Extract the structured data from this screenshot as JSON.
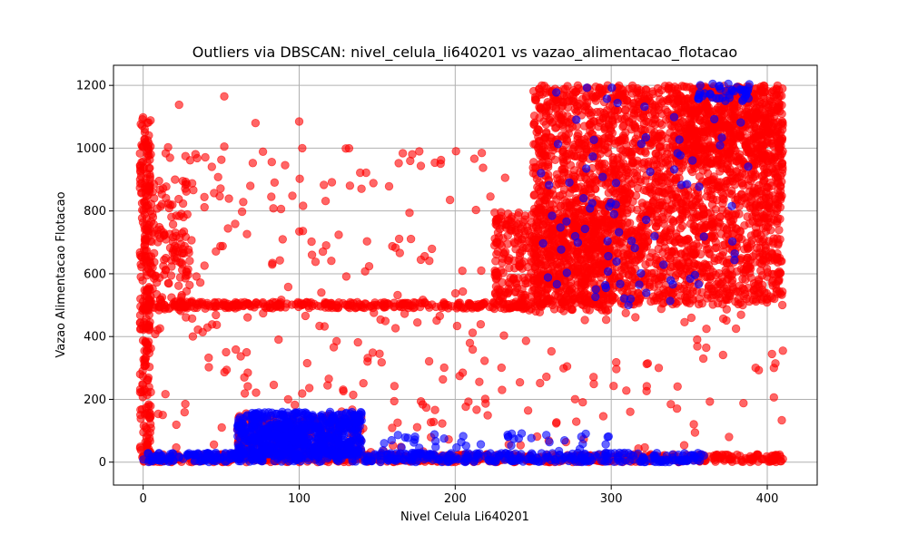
{
  "chart_data": {
    "type": "scatter",
    "title": "Outliers via DBSCAN: nivel_celula_li640201 vs vazao_alimentacao_flotacao",
    "xlabel": "Nivel Celula Li640201",
    "ylabel": "Vazao Alimentacao Flotacao",
    "xlim": [
      -19,
      432
    ],
    "ylim": [
      -73,
      1264
    ],
    "xticks": [
      0,
      100,
      200,
      300,
      400
    ],
    "yticks": [
      0,
      200,
      400,
      600,
      800,
      1000,
      1200
    ],
    "grid": true,
    "marker_alpha": 0.6,
    "series": [
      {
        "color": "#ff0000",
        "regions": [
          {
            "x": [
              250,
              410
            ],
            "y": [
              500,
              1200
            ],
            "n": 2600
          },
          {
            "x": [
              225,
              300
            ],
            "y": [
              480,
              800
            ],
            "n": 500
          },
          {
            "x": [
              340,
              410
            ],
            "y": [
              950,
              1200
            ],
            "n": 400
          },
          {
            "x": [
              0,
              250
            ],
            "y": [
              490,
              510
            ],
            "n": 300
          },
          {
            "x": [
              0,
              410
            ],
            "y": [
              0,
              25
            ],
            "n": 700
          },
          {
            "x": [
              -2,
              5
            ],
            "y": [
              0,
              1100
            ],
            "n": 250
          },
          {
            "x": [
              0,
              30
            ],
            "y": [
              480,
              900
            ],
            "n": 150
          },
          {
            "x": [
              60,
              140
            ],
            "y": [
              30,
              150
            ],
            "n": 220
          },
          {
            "x": [
              0,
              410
            ],
            "y": [
              30,
              1000
            ],
            "n": 400
          }
        ],
        "points": [
          {
            "x": 52,
            "y": 1165
          },
          {
            "x": 23,
            "y": 1138
          },
          {
            "x": 100,
            "y": 1085
          },
          {
            "x": 72,
            "y": 1080
          },
          {
            "x": 287,
            "y": 1080
          },
          {
            "x": 52,
            "y": 1005
          },
          {
            "x": 102,
            "y": 1000
          },
          {
            "x": 16,
            "y": 1003
          },
          {
            "x": 410,
            "y": 355
          },
          {
            "x": 410,
            "y": 10
          },
          {
            "x": 390,
            "y": 8
          },
          {
            "x": 0,
            "y": 1098
          },
          {
            "x": 177,
            "y": 990
          },
          {
            "x": 230,
            "y": 230
          },
          {
            "x": 380,
            "y": 425
          }
        ]
      },
      {
        "color": "#0000ff",
        "regions": [
          {
            "x": [
              60,
              140
            ],
            "y": [
              20,
              160
            ],
            "n": 650
          },
          {
            "x": [
              0,
              360
            ],
            "y": [
              0,
              30
            ],
            "n": 500
          },
          {
            "x": [
              150,
              300
            ],
            "y": [
              30,
              100
            ],
            "n": 40
          },
          {
            "x": [
              255,
              390
            ],
            "y": [
              500,
              1200
            ],
            "n": 80
          },
          {
            "x": [
              355,
              390
            ],
            "y": [
              1150,
              1205
            ],
            "n": 40
          }
        ],
        "points": [
          {
            "x": 284,
            "y": 935
          },
          {
            "x": 325,
            "y": 925
          },
          {
            "x": 365,
            "y": 1205
          },
          {
            "x": 375,
            "y": 1205
          },
          {
            "x": 311,
            "y": 500
          }
        ]
      }
    ]
  }
}
